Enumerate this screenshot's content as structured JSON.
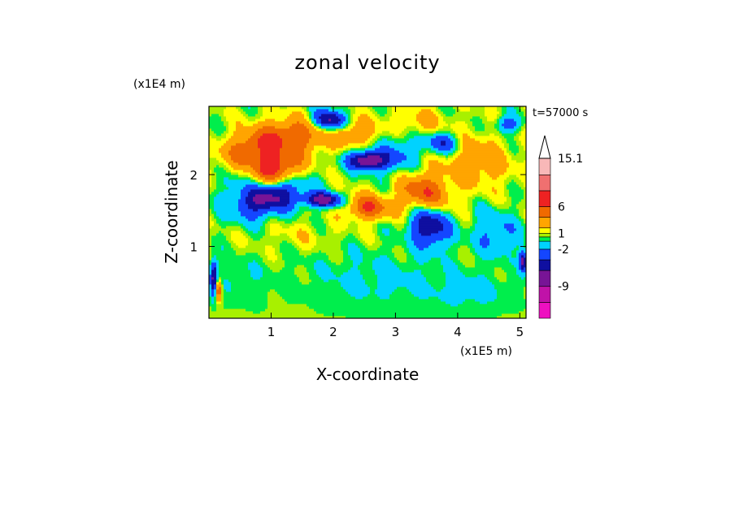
{
  "chart_data": {
    "type": "heatmap",
    "title": "zonal velocity",
    "xlabel": "X-coordinate",
    "ylabel": "Z-coordinate",
    "x_unit": "(x1E5 m)",
    "y_unit": "(x1E4 m)",
    "time_label": "t=57000 s",
    "xlim": [
      0,
      5.1
    ],
    "ylim": [
      0,
      2.95
    ],
    "x_ticks": [
      "1",
      "2",
      "3",
      "4",
      "5"
    ],
    "y_ticks": [
      "1",
      "2"
    ],
    "x_tick_values": [
      1,
      2,
      3,
      4,
      5
    ],
    "y_tick_values": [
      1,
      2
    ],
    "colorbar": {
      "labels": [
        "15.1",
        "6",
        "1",
        "-2",
        "-9"
      ],
      "label_values": [
        15.1,
        6,
        1,
        -2,
        -9
      ],
      "bins": [
        {
          "lo": -15,
          "hi": -12,
          "color": "#ee10c0"
        },
        {
          "lo": -12,
          "hi": -9,
          "color": "#c012a8"
        },
        {
          "lo": -9,
          "hi": -6,
          "color": "#781496"
        },
        {
          "lo": -6,
          "hi": -4,
          "color": "#0f0fa0"
        },
        {
          "lo": -4,
          "hi": -2,
          "color": "#1446ff"
        },
        {
          "lo": -2,
          "hi": -0.5,
          "color": "#00d2ff"
        },
        {
          "lo": -0.5,
          "hi": 0.3,
          "color": "#00ee4c"
        },
        {
          "lo": 0.3,
          "hi": 1,
          "color": "#a8f000"
        },
        {
          "lo": 1,
          "hi": 2,
          "color": "#ffff00"
        },
        {
          "lo": 2,
          "hi": 4,
          "color": "#ffa500"
        },
        {
          "lo": 4,
          "hi": 6,
          "color": "#f06a00"
        },
        {
          "lo": 6,
          "hi": 9,
          "color": "#ee2222"
        },
        {
          "lo": 9,
          "hi": 12,
          "color": "#f07070"
        },
        {
          "lo": 12,
          "hi": 15.1,
          "color": "#f8b8b8"
        }
      ]
    },
    "field": {
      "background": 0.6,
      "features": [
        {
          "x": 0.75,
          "z": 2.4,
          "sx": 0.35,
          "sz": 0.16,
          "amp": 5.0,
          "tilt": -0.9
        },
        {
          "x": 1.0,
          "z": 2.05,
          "sx": 0.3,
          "sz": 0.16,
          "amp": 8.0,
          "tilt": -0.9
        },
        {
          "x": 0.95,
          "z": 1.7,
          "sx": 0.35,
          "sz": 0.16,
          "amp": -8.0,
          "tilt": -0.9
        },
        {
          "x": 0.6,
          "z": 1.95,
          "sx": 0.25,
          "sz": 0.14,
          "amp": -3.0,
          "tilt": -0.9
        },
        {
          "x": 1.95,
          "z": 2.75,
          "sx": 0.25,
          "sz": 0.14,
          "amp": -8.0,
          "tilt": 0.3
        },
        {
          "x": 1.45,
          "z": 2.55,
          "sx": 0.45,
          "sz": 0.2,
          "amp": 4.0,
          "tilt": 0.4
        },
        {
          "x": 2.3,
          "z": 2.6,
          "sx": 0.4,
          "sz": 0.18,
          "amp": 3.5,
          "tilt": 0.2
        },
        {
          "x": 1.85,
          "z": 1.65,
          "sx": 0.3,
          "sz": 0.1,
          "amp": -8.0,
          "tilt": 0.2
        },
        {
          "x": 2.55,
          "z": 2.2,
          "sx": 0.3,
          "sz": 0.13,
          "amp": -9.0,
          "tilt": 0.1
        },
        {
          "x": 2.55,
          "z": 1.55,
          "sx": 0.35,
          "sz": 0.16,
          "amp": 5.5,
          "tilt": 0.3
        },
        {
          "x": 3.45,
          "z": 1.75,
          "sx": 0.28,
          "sz": 0.18,
          "amp": 5.5,
          "tilt": 0.9
        },
        {
          "x": 3.55,
          "z": 1.3,
          "sx": 0.2,
          "sz": 0.18,
          "amp": -7.0,
          "tilt": 0.9
        },
        {
          "x": 3.05,
          "z": 2.3,
          "sx": 0.22,
          "sz": 0.25,
          "amp": -3.0,
          "tilt": 0.9
        },
        {
          "x": 3.75,
          "z": 2.45,
          "sx": 0.3,
          "sz": 0.15,
          "amp": -5.0,
          "tilt": 0.3
        },
        {
          "x": 3.3,
          "z": 2.7,
          "sx": 0.4,
          "sz": 0.2,
          "amp": 2.5,
          "tilt": 0.5
        },
        {
          "x": 4.3,
          "z": 2.2,
          "sx": 0.45,
          "sz": 0.3,
          "amp": 3.0,
          "tilt": 0.6
        },
        {
          "x": 4.6,
          "z": 1.2,
          "sx": 0.3,
          "sz": 0.25,
          "amp": -3.0,
          "tilt": 0.7
        },
        {
          "x": 4.8,
          "z": 2.7,
          "sx": 0.2,
          "sz": 0.12,
          "amp": -4.0,
          "tilt": 0.0
        },
        {
          "x": 2.7,
          "z": 0.55,
          "sx": 1.3,
          "sz": 0.45,
          "amp": -1.4,
          "tilt": 0.0
        },
        {
          "x": 4.3,
          "z": 0.35,
          "sx": 0.7,
          "sz": 0.3,
          "amp": -1.2,
          "tilt": 0.0
        },
        {
          "x": 0.5,
          "z": 0.5,
          "sx": 0.5,
          "sz": 0.35,
          "amp": -1.0,
          "tilt": 0.0
        },
        {
          "x": 1.5,
          "z": 1.15,
          "sx": 0.6,
          "sz": 0.18,
          "amp": 0.9,
          "tilt": 0.0
        },
        {
          "x": 0.08,
          "z": 0.55,
          "sx": 0.06,
          "sz": 0.25,
          "amp": -7.0,
          "tilt": 0.0
        },
        {
          "x": 0.15,
          "z": 0.4,
          "sx": 0.05,
          "sz": 0.15,
          "amp": 7.0,
          "tilt": 0.0
        },
        {
          "x": 5.05,
          "z": 0.8,
          "sx": 0.06,
          "sz": 0.15,
          "amp": -7.0,
          "tilt": 0.0
        }
      ]
    }
  }
}
